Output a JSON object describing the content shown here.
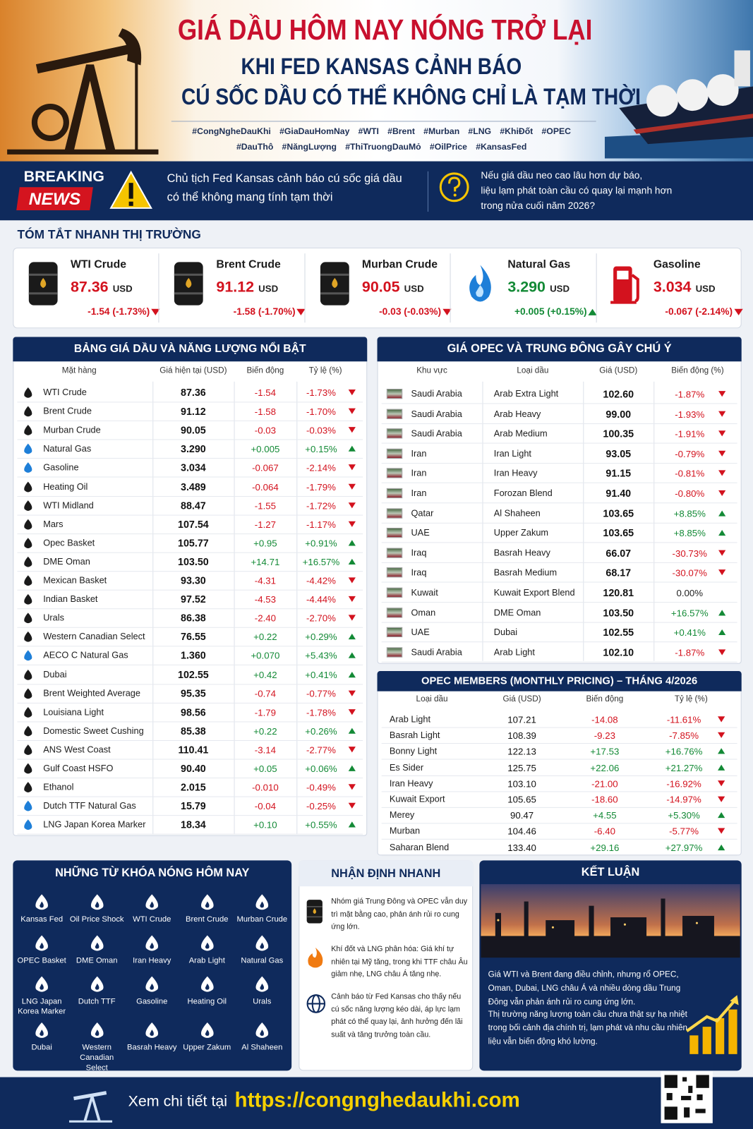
{
  "header": {
    "title_lines": [
      "GIÁ DẦU HÔM NAY NÓNG TRỞ LẠI",
      "KHI FED KANSAS CẢNH BÁO",
      "CÚ SỐC DẦU CÓ THỂ KHÔNG CHỈ LÀ TẠM THỜI"
    ],
    "hashtags": [
      [
        "#CongNgheDauKhi",
        "#GiaDauHomNay",
        "#WTI",
        "#Brent",
        "#Murban",
        "#LNG",
        "#KhiĐốt",
        "#OPEC"
      ],
      [
        "#DauThô",
        "#NăngLượng",
        "#ThiTruongDauMỏ",
        "#OilPrice",
        "#KansasFed"
      ]
    ]
  },
  "breaking": {
    "label_top": "BREAKING",
    "label_bottom": "NEWS",
    "headline_lines": [
      "Chủ tịch Fed Kansas cảnh báo cú sốc giá dầu",
      "có thể không mang tính tạm thời"
    ],
    "question_lines": [
      "Nếu giá dầu neo cao lâu hơn dự báo,",
      "liệu lạm phát toàn cầu có quay lại mạnh hơn",
      "trong nửa cuối năm 2026?"
    ]
  },
  "summary": {
    "title": "TÓM TẮT NHANH THỊ TRƯỜNG",
    "cards": [
      {
        "name": "WTI Crude",
        "price": "87.36",
        "unit": "USD",
        "change": "-1.54 (-1.73%)"
      },
      {
        "name": "Brent Crude",
        "price": "91.12",
        "unit": "USD",
        "change": "-1.58 (-1.70%)"
      },
      {
        "name": "Murban Crude",
        "price": "90.05",
        "unit": "USD",
        "change": "-0.03 (-0.03%)"
      },
      {
        "name": "Natural Gas",
        "price": "3.290",
        "unit": "USD",
        "change": "+0.005 (+0.15%)"
      },
      {
        "name": "Gasoline",
        "price": "3.034",
        "unit": "USD",
        "change": "-0.067 (-2.14%)"
      }
    ]
  },
  "energy_table": {
    "title": "BẢNG GIÁ DẦU VÀ NĂNG LƯỢNG NỔI BẬT",
    "columns": [
      "Mặt hàng",
      "Giá hiện tại (USD)",
      "Biến động",
      "Tỷ lệ (%)"
    ],
    "rows": [
      [
        "WTI Crude",
        "87.36",
        "-1.54",
        "-1.73%"
      ],
      [
        "Brent Crude",
        "91.12",
        "-1.58",
        "-1.70%"
      ],
      [
        "Murban Crude",
        "90.05",
        "-0.03",
        "-0.03%"
      ],
      [
        "Natural Gas",
        "3.290",
        "+0.005",
        "+0.15%"
      ],
      [
        "Gasoline",
        "3.034",
        "-0.067",
        "-2.14%"
      ],
      [
        "Heating Oil",
        "3.489",
        "-0.064",
        "-1.79%"
      ],
      [
        "WTI Midland",
        "88.47",
        "-1.55",
        "-1.72%"
      ],
      [
        "Mars",
        "107.54",
        "-1.27",
        "-1.17%"
      ],
      [
        "Opec Basket",
        "105.77",
        "+0.95",
        "+0.91%"
      ],
      [
        "DME Oman",
        "103.50",
        "+14.71",
        "+16.57%"
      ],
      [
        "Mexican Basket",
        "93.30",
        "-4.31",
        "-4.42%"
      ],
      [
        "Indian Basket",
        "97.52",
        "-4.53",
        "-4.44%"
      ],
      [
        "Urals",
        "86.38",
        "-2.40",
        "-2.70%"
      ],
      [
        "Western Canadian Select",
        "76.55",
        "+0.22",
        "+0.29%"
      ],
      [
        "AECO C Natural Gas",
        "1.360",
        "+0.070",
        "+5.43%"
      ],
      [
        "Dubai",
        "102.55",
        "+0.42",
        "+0.41%"
      ],
      [
        "Brent Weighted Average",
        "95.35",
        "-0.74",
        "-0.77%"
      ],
      [
        "Louisiana Light",
        "98.56",
        "-1.79",
        "-1.78%"
      ],
      [
        "Domestic Sweet Cushing",
        "85.38",
        "+0.22",
        "+0.26%"
      ],
      [
        "ANS West Coast",
        "110.41",
        "-3.14",
        "-2.77%"
      ],
      [
        "Gulf Coast HSFO",
        "90.40",
        "+0.05",
        "+0.06%"
      ],
      [
        "Ethanol",
        "2.015",
        "-0.010",
        "-0.49%"
      ],
      [
        "Dutch TTF Natural Gas",
        "15.79",
        "-0.04",
        "-0.25%"
      ],
      [
        "LNG Japan Korea Marker",
        "18.34",
        "+0.10",
        "+0.55%"
      ]
    ]
  },
  "opec_table": {
    "title": "GIÁ OPEC VÀ TRUNG ĐÔNG GÂY CHÚ Ý",
    "columns": [
      "Khu vực",
      "Loại dầu",
      "Giá (USD)",
      "Biến động (%)"
    ],
    "rows": [
      [
        "Saudi Arabia",
        "Arab Extra Light",
        "102.60",
        "-1.87%"
      ],
      [
        "Saudi Arabia",
        "Arab Heavy",
        "99.00",
        "-1.93%"
      ],
      [
        "Saudi Arabia",
        "Arab Medium",
        "100.35",
        "-1.91%"
      ],
      [
        "Iran",
        "Iran Light",
        "93.05",
        "-0.79%"
      ],
      [
        "Iran",
        "Iran Heavy",
        "91.15",
        "-0.81%"
      ],
      [
        "Iran",
        "Forozan Blend",
        "91.40",
        "-0.80%"
      ],
      [
        "Qatar",
        "Al Shaheen",
        "103.65",
        "+8.85%"
      ],
      [
        "UAE",
        "Upper Zakum",
        "103.65",
        "+8.85%"
      ],
      [
        "Iraq",
        "Basrah Heavy",
        "66.07",
        "-30.73%"
      ],
      [
        "Iraq",
        "Basrah Medium",
        "68.17",
        "-30.07%"
      ],
      [
        "Kuwait",
        "Kuwait Export Blend",
        "120.81",
        "0.00%"
      ],
      [
        "Oman",
        "DME Oman",
        "103.50",
        "+16.57%"
      ],
      [
        "UAE",
        "Dubai",
        "102.55",
        "+0.41%"
      ],
      [
        "Saudi Arabia",
        "Arab Light",
        "102.10",
        "-1.87%"
      ]
    ]
  },
  "monthly_table": {
    "title": "OPEC MEMBERS (MONTHLY PRICING) – THÁNG 4/2026",
    "columns": [
      "Loại dầu",
      "Giá (USD)",
      "Biến động",
      "Tỷ lệ (%)"
    ],
    "rows": [
      [
        "Arab Light",
        "107.21",
        "-14.08",
        "-11.61%"
      ],
      [
        "Basrah Light",
        "108.39",
        "-9.23",
        "-7.85%"
      ],
      [
        "Bonny Light",
        "122.13",
        "+17.53",
        "+16.76%"
      ],
      [
        "Es Sider",
        "125.75",
        "+22.06",
        "+21.27%"
      ],
      [
        "Iran Heavy",
        "103.10",
        "-21.00",
        "-16.92%"
      ],
      [
        "Kuwait Export",
        "105.65",
        "-18.60",
        "-14.97%"
      ],
      [
        "Merey",
        "90.47",
        "+4.55",
        "+5.30%"
      ],
      [
        "Murban",
        "104.46",
        "-6.40",
        "-5.77%"
      ],
      [
        "Saharan Blend",
        "133.40",
        "+29.16",
        "+27.97%"
      ]
    ]
  },
  "keywords": {
    "title": "NHỮNG TỪ KHÓA NÓNG HÔM NAY",
    "items": [
      "Kansas Fed",
      "Oil Price Shock",
      "WTI Crude",
      "Brent Crude",
      "Murban Crude",
      "OPEC Basket",
      "DME Oman",
      "Iran Heavy",
      "Arab Light",
      "Natural Gas",
      "LNG Japan Korea Marker",
      "Dutch TTF",
      "Gasoline",
      "Heating Oil",
      "Urals",
      "Dubai",
      "Western Canadian Select",
      "Basrah Heavy",
      "Upper Zakum",
      "Al Shaheen"
    ]
  },
  "quick_view": {
    "title": "NHẬN ĐỊNH NHANH",
    "items": [
      "Nhóm giá Trung Đông và OPEC vẫn duy trì mặt bằng cao, phản ánh rủi ro cung ứng lớn.",
      "Khí đốt và LNG phân hóa: Giá khí tự nhiên tại Mỹ tăng, trong khi TTF châu Âu giảm nhẹ, LNG châu Á tăng nhẹ.",
      "Cảnh báo từ Fed Kansas cho thấy nếu cú sốc năng lượng kéo dài, áp lực lạm phát có thể quay lại, ảnh hưởng đến lãi suất và tăng trưởng toàn cầu."
    ]
  },
  "conclusion": {
    "title": "KẾT LUẬN",
    "paragraphs": [
      "Giá WTI và Brent đang điều chỉnh, nhưng rổ OPEC, Oman, Dubai, LNG châu Á và nhiều dòng dầu Trung Đông vẫn phản ánh rủi ro cung ứng lớn.",
      "Thị trường năng lượng toàn cầu chưa thật sự hạ nhiệt trong bối cảnh địa chính trị, lạm phát và nhu cầu nhiên liệu vẫn biến động khó lường."
    ]
  },
  "footer": {
    "label": "Xem chi tiết tại",
    "url": "https://congnghedaukhi.com"
  }
}
